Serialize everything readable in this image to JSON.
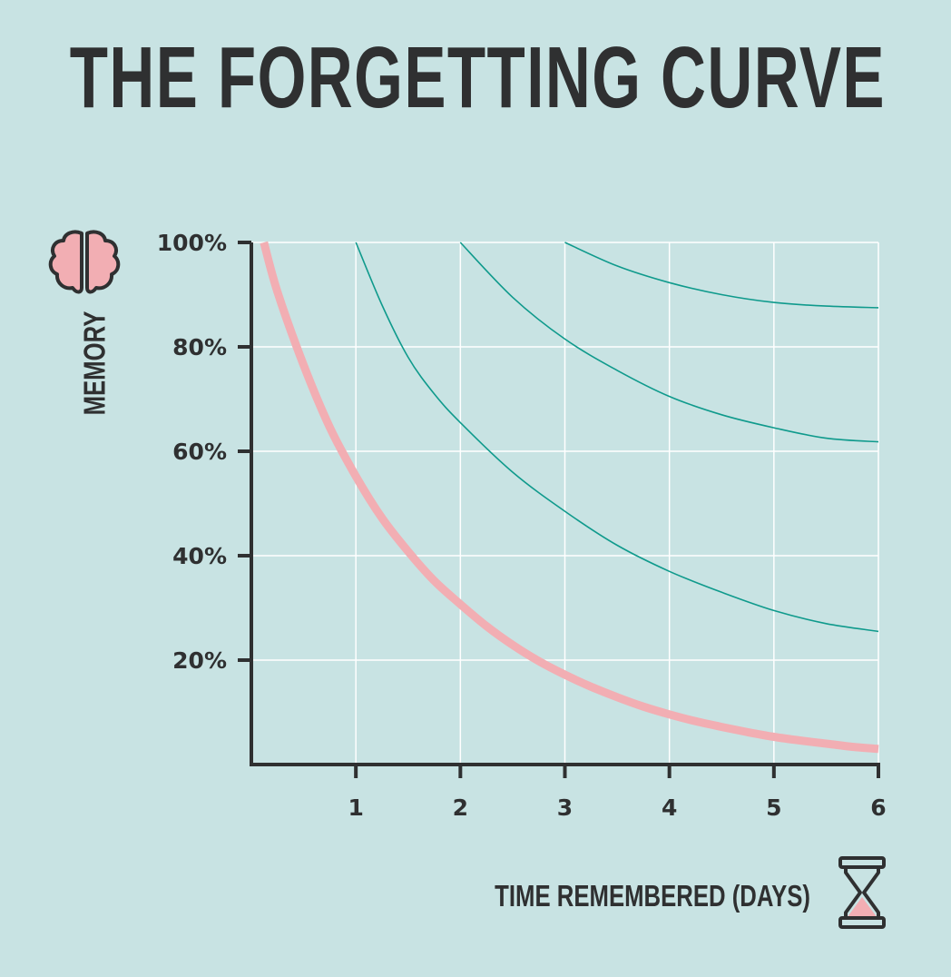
{
  "title": "THE FORGETTING CURVE",
  "colors": {
    "background": "#c8e3e3",
    "text": "#2f3031",
    "grid": "#ffffff",
    "primary_curve": "#f2aeb3",
    "review_curves": "#0f9a8c",
    "icon_fill": "#f2aeb3"
  },
  "icons": {
    "y_axis": "brain-icon",
    "x_axis": "hourglass-icon"
  },
  "chart_data": {
    "type": "line",
    "title": "THE FORGETTING CURVE",
    "xlabel": "TIME REMEMBERED (DAYS)",
    "ylabel": "MEMORY",
    "xlim": [
      0,
      6
    ],
    "ylim": [
      0,
      100
    ],
    "x_ticks": [
      "1",
      "2",
      "3",
      "4",
      "5",
      "6"
    ],
    "y_ticks": [
      "20%",
      "40%",
      "60%",
      "80%",
      "100%"
    ],
    "grid": true,
    "series": [
      {
        "x": [
          0.12,
          0.25,
          0.5,
          0.75,
          1.0,
          1.25,
          1.5,
          1.75,
          2.0,
          2.25,
          2.5,
          2.75,
          3.0,
          3.25,
          3.5,
          3.75,
          4.0,
          4.25,
          4.5,
          4.75,
          5.0,
          5.25,
          5.5,
          5.75,
          6.0
        ],
        "values": [
          100,
          90.5,
          76.5,
          64.6,
          55.2,
          47.2,
          40.8,
          35.2,
          30.7,
          26.5,
          22.9,
          19.8,
          17.2,
          14.9,
          12.9,
          11.1,
          9.6,
          8.3,
          7.2,
          6.2,
          5.3,
          4.6,
          4.0,
          3.4,
          3.0
        ]
      },
      {
        "x": [
          1.0,
          1.25,
          1.5,
          1.75,
          2.0,
          2.5,
          3.0,
          3.5,
          4.0,
          4.5,
          5.0,
          5.5,
          6.0
        ],
        "values": [
          100,
          88,
          78,
          71,
          65.5,
          56,
          48.5,
          42,
          37,
          33,
          29.5,
          27,
          25.5
        ]
      },
      {
        "x": [
          2.0,
          2.5,
          3.0,
          3.5,
          4.0,
          4.5,
          5.0,
          5.5,
          6.0
        ],
        "values": [
          100,
          89.5,
          81.5,
          75.5,
          70.5,
          67,
          64.5,
          62.5,
          61.8
        ]
      },
      {
        "x": [
          3.0,
          3.5,
          4.0,
          4.5,
          5.0,
          5.5,
          6.0
        ],
        "values": [
          100,
          95.5,
          92.3,
          90,
          88.5,
          87.8,
          87.5
        ]
      }
    ]
  }
}
